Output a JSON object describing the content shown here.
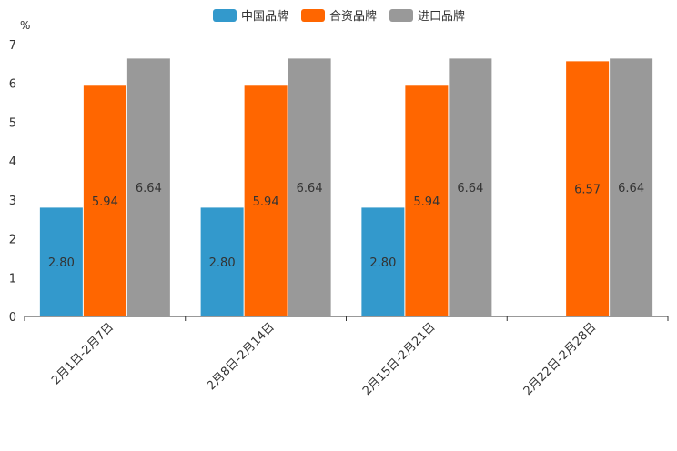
{
  "chart_data": {
    "type": "bar",
    "unit_label": "%",
    "categories": [
      "2月1日-2月7日",
      "2月8日-2月14日",
      "2月15日-2月21日",
      "2月22日-2月28日"
    ],
    "series": [
      {
        "name": "中国品牌",
        "color": "#3399cc",
        "values": [
          2.8,
          2.8,
          2.8,
          null
        ],
        "labels": [
          "2.80",
          "2.80",
          "2.80",
          ""
        ]
      },
      {
        "name": "合资品牌",
        "color": "#ff6600",
        "values": [
          5.94,
          5.94,
          5.94,
          6.57
        ],
        "labels": [
          "5.94",
          "5.94",
          "5.94",
          "6.57"
        ]
      },
      {
        "name": "进口品牌",
        "color": "#999999",
        "values": [
          6.64,
          6.64,
          6.64,
          6.64
        ],
        "labels": [
          "6.64",
          "6.64",
          "6.64",
          "6.64"
        ]
      }
    ],
    "yticks": [
      "0",
      "1",
      "2",
      "3",
      "4",
      "5",
      "6",
      "7"
    ],
    "ylim": [
      0,
      7
    ],
    "legend_position": "top-center",
    "grid": false
  }
}
